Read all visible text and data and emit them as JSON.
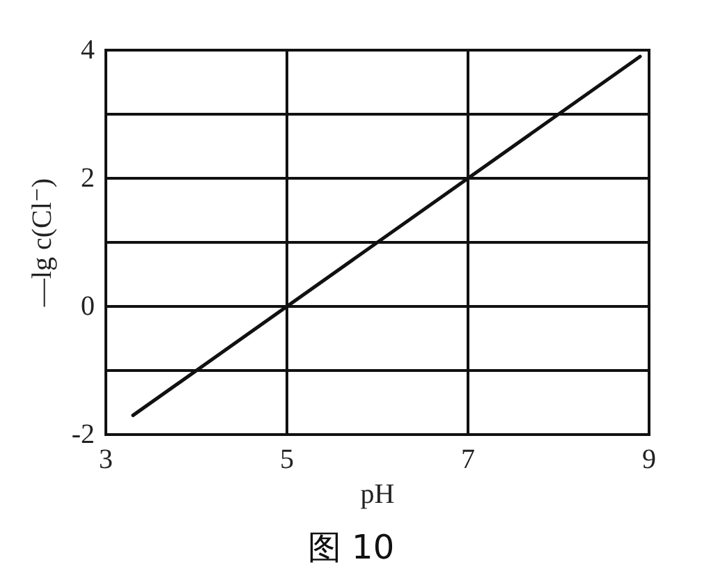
{
  "chart_data": {
    "type": "line",
    "title": "图 10",
    "xlabel": "pH",
    "ylabel": "—lg c(Cl⁻)",
    "x": [
      3.3,
      8.9
    ],
    "series": [
      {
        "color": "#111111",
        "values": [
          -1.7,
          3.9
        ]
      }
    ],
    "xlim": [
      3,
      9
    ],
    "xticks": [
      3,
      5,
      7,
      9
    ],
    "ylim": [
      -2,
      4
    ],
    "yticks": [
      -2,
      {
        "value": -1,
        "label": null
      },
      0,
      {
        "value": 1,
        "label": null
      },
      2,
      {
        "value": 3,
        "label": null
      },
      4
    ],
    "grid": true,
    "marker": "none",
    "line_style": "solid"
  }
}
